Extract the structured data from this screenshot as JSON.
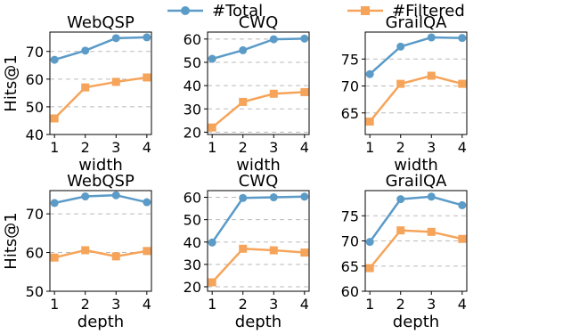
{
  "legend": {
    "position": "top-center",
    "entries": [
      {
        "label": "#Total",
        "color": "#5b9bc8",
        "marker": "circle"
      },
      {
        "label": "#Filtered",
        "color": "#f6a45a",
        "marker": "square"
      }
    ]
  },
  "chart_data": [
    {
      "type": "line",
      "title": "WebQSP",
      "xlabel": "width",
      "ylabel": "Hits@1",
      "x": [
        1,
        2,
        3,
        4
      ],
      "ylim": [
        40,
        77
      ],
      "yticks": [
        40,
        50,
        60,
        70
      ],
      "grid": "y-dashed",
      "series": [
        {
          "name": "#Total",
          "values": [
            67.0,
            70.3,
            74.8,
            75.1
          ]
        },
        {
          "name": "#Filtered",
          "values": [
            45.8,
            57.0,
            59.0,
            60.6
          ]
        }
      ]
    },
    {
      "type": "line",
      "title": "CWQ",
      "xlabel": "width",
      "ylabel": "",
      "x": [
        1,
        2,
        3,
        4
      ],
      "ylim": [
        19,
        63
      ],
      "yticks": [
        20,
        30,
        40,
        50,
        60
      ],
      "grid": "y-dashed",
      "series": [
        {
          "name": "#Total",
          "values": [
            51.5,
            55.2,
            59.9,
            60.2
          ]
        },
        {
          "name": "#Filtered",
          "values": [
            22.0,
            33.0,
            36.5,
            37.2
          ]
        }
      ]
    },
    {
      "type": "line",
      "title": "GrailQA",
      "xlabel": "width",
      "ylabel": "",
      "x": [
        1,
        2,
        3,
        4
      ],
      "ylim": [
        61,
        80
      ],
      "yticks": [
        65,
        70,
        75
      ],
      "grid": "y-dashed",
      "series": [
        {
          "name": "#Total",
          "values": [
            72.2,
            77.3,
            79.0,
            78.9
          ]
        },
        {
          "name": "#Filtered",
          "values": [
            63.4,
            70.4,
            71.9,
            70.4
          ]
        }
      ]
    },
    {
      "type": "line",
      "title": "WebQSP",
      "xlabel": "depth",
      "ylabel": "Hits@1",
      "x": [
        1,
        2,
        3,
        4
      ],
      "ylim": [
        50,
        76
      ],
      "yticks": [
        50,
        60,
        70
      ],
      "grid": "y-dashed",
      "series": [
        {
          "name": "#Total",
          "values": [
            72.8,
            74.5,
            74.8,
            73.0
          ]
        },
        {
          "name": "#Filtered",
          "values": [
            58.7,
            60.6,
            59.0,
            60.4
          ]
        }
      ]
    },
    {
      "type": "line",
      "title": "CWQ",
      "xlabel": "depth",
      "ylabel": "",
      "x": [
        1,
        2,
        3,
        4
      ],
      "ylim": [
        18,
        63
      ],
      "yticks": [
        20,
        30,
        40,
        50,
        60
      ],
      "grid": "y-dashed",
      "series": [
        {
          "name": "#Total",
          "values": [
            39.8,
            59.7,
            60.0,
            60.3
          ]
        },
        {
          "name": "#Filtered",
          "values": [
            22.0,
            37.0,
            36.3,
            35.3
          ]
        }
      ]
    },
    {
      "type": "line",
      "title": "GrailQA",
      "xlabel": "depth",
      "ylabel": "",
      "x": [
        1,
        2,
        3,
        4
      ],
      "ylim": [
        60,
        80
      ],
      "yticks": [
        60,
        65,
        70,
        75
      ],
      "grid": "y-dashed",
      "series": [
        {
          "name": "#Total",
          "values": [
            69.8,
            78.3,
            78.8,
            77.1
          ]
        },
        {
          "name": "#Filtered",
          "values": [
            64.6,
            72.1,
            71.8,
            70.4
          ]
        }
      ]
    }
  ]
}
